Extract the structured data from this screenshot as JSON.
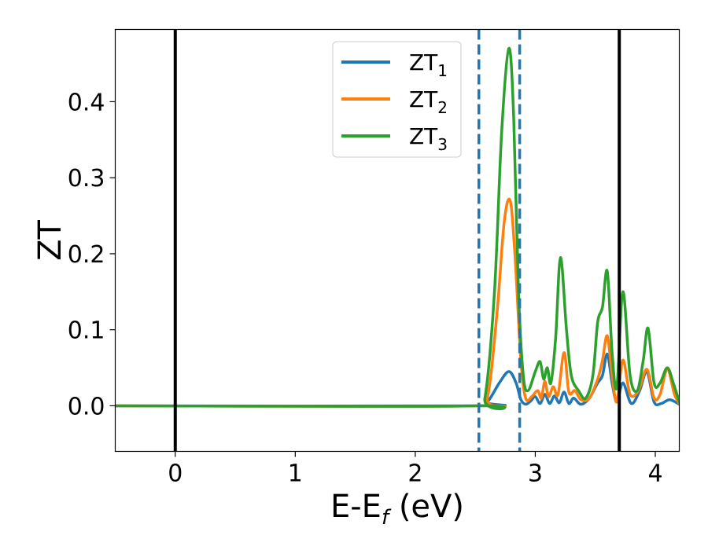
{
  "chart_data": {
    "type": "line",
    "xlabel": "E-E",
    "xlabel_sub": "f",
    "xlabel_unit": " (eV)",
    "ylabel": "ZT",
    "xlim": [
      -0.5,
      4.2
    ],
    "ylim": [
      -0.06,
      0.495
    ],
    "x_ticks": [
      0,
      1,
      2,
      3,
      4
    ],
    "x_tick_labels": [
      "0",
      "1",
      "2",
      "3",
      "4"
    ],
    "y_ticks": [
      0.0,
      0.1,
      0.2,
      0.3,
      0.4
    ],
    "y_tick_labels": [
      "0.0",
      "0.1",
      "0.2",
      "0.3",
      "0.4"
    ],
    "grid": false,
    "legend_position": "upper-center",
    "vertical_lines": [
      {
        "x": 0.0,
        "style": "solid",
        "color": "#000000"
      },
      {
        "x": 3.7,
        "style": "solid",
        "color": "#000000"
      },
      {
        "x": 2.53,
        "style": "dashed",
        "color": "#1f77b4"
      },
      {
        "x": 2.87,
        "style": "dashed",
        "color": "#1f77b4"
      }
    ],
    "series": [
      {
        "name": "ZT",
        "subscript": "1",
        "color": "#1f77b4",
        "points": [
          [
            -0.5,
            0
          ],
          [
            2.5,
            0
          ],
          [
            2.6,
            0.005
          ],
          [
            2.7,
            0.03
          ],
          [
            2.78,
            0.045
          ],
          [
            2.84,
            0.03
          ],
          [
            2.88,
            0.008
          ],
          [
            2.92,
            0.002
          ],
          [
            2.96,
            0.006
          ],
          [
            3.0,
            0.012
          ],
          [
            3.04,
            0.003
          ],
          [
            3.08,
            0.015
          ],
          [
            3.12,
            0.003
          ],
          [
            3.16,
            0.013
          ],
          [
            3.2,
            0.004
          ],
          [
            3.24,
            0.018
          ],
          [
            3.28,
            0.003
          ],
          [
            3.32,
            0.01
          ],
          [
            3.38,
            0.002
          ],
          [
            3.45,
            0.01
          ],
          [
            3.52,
            0.03
          ],
          [
            3.56,
            0.04
          ],
          [
            3.6,
            0.068
          ],
          [
            3.64,
            0.03
          ],
          [
            3.68,
            0.005
          ],
          [
            3.73,
            0.03
          ],
          [
            3.8,
            0.003
          ],
          [
            3.87,
            0.02
          ],
          [
            3.93,
            0.045
          ],
          [
            3.99,
            0.005
          ],
          [
            4.05,
            0.003
          ],
          [
            4.12,
            0.008
          ],
          [
            4.2,
            0.002
          ]
        ]
      },
      {
        "name": "ZT",
        "subscript": "2",
        "color": "#ff7f0e",
        "points": [
          [
            -0.5,
            0
          ],
          [
            2.5,
            0
          ],
          [
            2.6,
            0.01
          ],
          [
            2.68,
            0.12
          ],
          [
            2.74,
            0.24
          ],
          [
            2.79,
            0.27
          ],
          [
            2.83,
            0.2
          ],
          [
            2.88,
            0.06
          ],
          [
            2.92,
            0.01
          ],
          [
            2.97,
            0.012
          ],
          [
            3.02,
            0.02
          ],
          [
            3.05,
            0.01
          ],
          [
            3.08,
            0.032
          ],
          [
            3.11,
            0.012
          ],
          [
            3.15,
            0.025
          ],
          [
            3.19,
            0.015
          ],
          [
            3.24,
            0.07
          ],
          [
            3.28,
            0.018
          ],
          [
            3.33,
            0.02
          ],
          [
            3.38,
            0.008
          ],
          [
            3.45,
            0.01
          ],
          [
            3.52,
            0.035
          ],
          [
            3.56,
            0.06
          ],
          [
            3.6,
            0.092
          ],
          [
            3.64,
            0.04
          ],
          [
            3.68,
            0.005
          ],
          [
            3.73,
            0.06
          ],
          [
            3.79,
            0.015
          ],
          [
            3.86,
            0.02
          ],
          [
            3.93,
            0.048
          ],
          [
            3.99,
            0.01
          ],
          [
            4.04,
            0.015
          ],
          [
            4.1,
            0.048
          ],
          [
            4.16,
            0.015
          ],
          [
            4.2,
            0.003
          ]
        ]
      },
      {
        "name": "ZT",
        "subscript": "3",
        "color": "#2ca02c",
        "points": [
          [
            -0.5,
            0
          ],
          [
            2.5,
            0
          ],
          [
            2.58,
            0.01
          ],
          [
            2.66,
            0.15
          ],
          [
            2.72,
            0.36
          ],
          [
            2.78,
            0.47
          ],
          [
            2.82,
            0.38
          ],
          [
            2.86,
            0.15
          ],
          [
            2.9,
            0.04
          ],
          [
            2.94,
            0.02
          ],
          [
            3.0,
            0.045
          ],
          [
            3.04,
            0.058
          ],
          [
            3.07,
            0.035
          ],
          [
            3.1,
            0.05
          ],
          [
            3.13,
            0.03
          ],
          [
            3.17,
            0.09
          ],
          [
            3.21,
            0.195
          ],
          [
            3.26,
            0.1
          ],
          [
            3.3,
            0.04
          ],
          [
            3.36,
            0.02
          ],
          [
            3.42,
            0.01
          ],
          [
            3.48,
            0.04
          ],
          [
            3.52,
            0.11
          ],
          [
            3.56,
            0.13
          ],
          [
            3.6,
            0.177
          ],
          [
            3.64,
            0.07
          ],
          [
            3.68,
            0.025
          ],
          [
            3.73,
            0.15
          ],
          [
            3.79,
            0.04
          ],
          [
            3.85,
            0.02
          ],
          [
            3.9,
            0.06
          ],
          [
            3.94,
            0.102
          ],
          [
            3.99,
            0.03
          ],
          [
            4.04,
            0.03
          ],
          [
            4.1,
            0.05
          ],
          [
            4.15,
            0.03
          ],
          [
            4.2,
            0.005
          ]
        ]
      }
    ]
  }
}
